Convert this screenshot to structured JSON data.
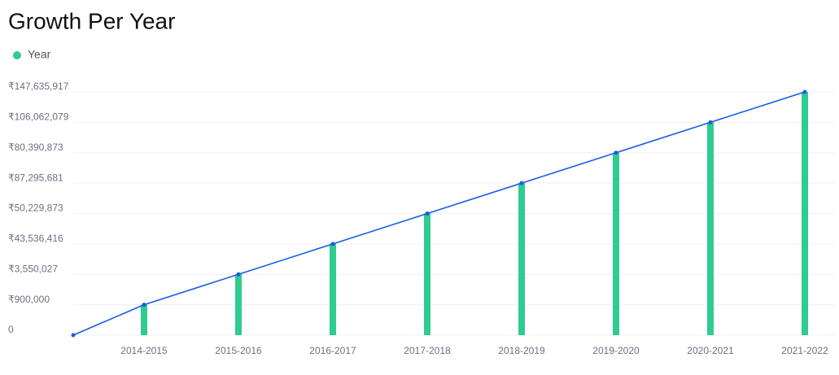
{
  "chart_data": {
    "type": "bar",
    "title": "Growth Per Year",
    "categories": [
      null,
      "2014-2015",
      "2015-2016",
      "2016-2017",
      "2017-2018",
      "2018-2019",
      "2019-2020",
      "2020-2021",
      "2021-2022"
    ],
    "series": [
      {
        "name": "Year",
        "type": "bar",
        "color": "#2ecc8f",
        "values": [
          null,
          900000,
          3550027,
          43536416,
          50229873,
          87295681,
          80390873,
          106062079,
          147635917
        ]
      },
      {
        "type": "line",
        "color": "#1a5ce6",
        "values": [
          0,
          900000,
          3550027,
          43536416,
          50229873,
          87295681,
          80390873,
          106062079,
          147635917
        ]
      }
    ],
    "y_scale": "category",
    "yticks": [
      0,
      {
        "value": 900000,
        "label": "₹900,000"
      },
      {
        "value": 3550027,
        "label": "₹3,550,027"
      },
      {
        "value": 43536416,
        "label": "₹43,536,416"
      },
      {
        "value": 50229873,
        "label": "₹50,229,873"
      },
      {
        "value": 87295681,
        "label": "₹87,295,681"
      },
      {
        "value": 80390873,
        "label": "₹80,390,873"
      },
      {
        "value": 106062079,
        "label": "₹106,062,079"
      },
      {
        "value": 147635917,
        "label": "₹147,635,917"
      }
    ],
    "grid": true,
    "legend": "top-left"
  }
}
